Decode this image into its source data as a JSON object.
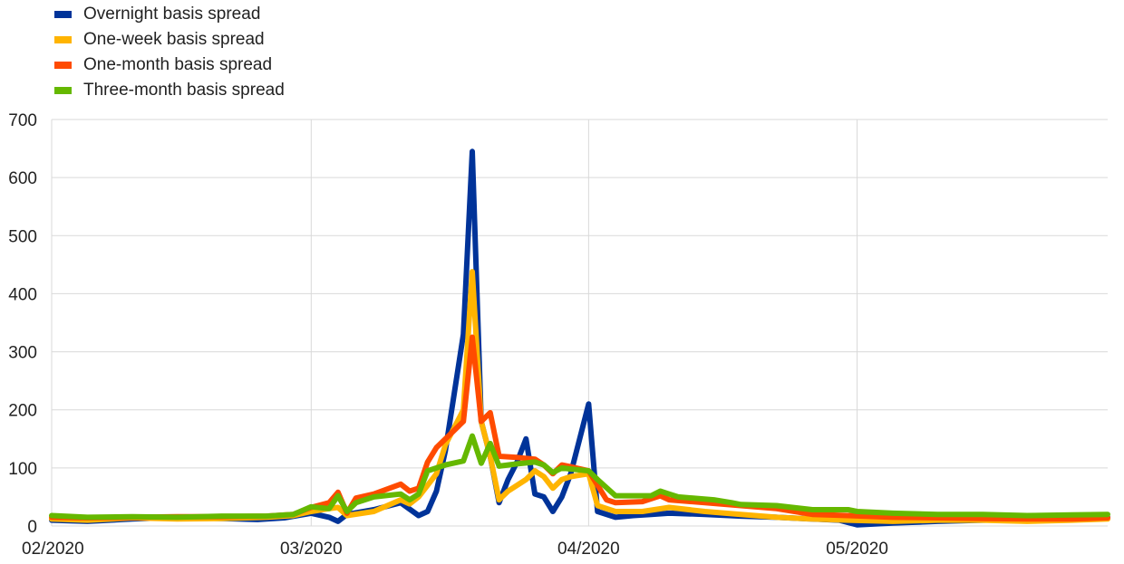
{
  "chart_data": {
    "type": "line",
    "title": "",
    "xlabel": "",
    "ylabel": "",
    "ylim": [
      0,
      700
    ],
    "yticks": [
      0,
      100,
      200,
      300,
      400,
      500,
      600,
      700
    ],
    "xlim": [
      "2020-02-01",
      "2020-05-29"
    ],
    "xticks": [
      {
        "date": "2020-02-01",
        "label": "02/2020"
      },
      {
        "date": "2020-03-01",
        "label": "03/2020"
      },
      {
        "date": "2020-04-01",
        "label": "04/2020"
      },
      {
        "date": "2020-05-01",
        "label": "05/2020"
      }
    ],
    "grid": true,
    "legend_position": "top-left",
    "series": [
      {
        "name": "Overnight basis spread",
        "color": "#003399",
        "points": [
          [
            "2020-02-01",
            10
          ],
          [
            "2020-02-05",
            8
          ],
          [
            "2020-02-10",
            12
          ],
          [
            "2020-02-15",
            15
          ],
          [
            "2020-02-20",
            13
          ],
          [
            "2020-02-24",
            11
          ],
          [
            "2020-02-27",
            14
          ],
          [
            "2020-03-01",
            22
          ],
          [
            "2020-03-03",
            15
          ],
          [
            "2020-03-04",
            8
          ],
          [
            "2020-03-05",
            20
          ],
          [
            "2020-03-08",
            28
          ],
          [
            "2020-03-11",
            40
          ],
          [
            "2020-03-13",
            18
          ],
          [
            "2020-03-14",
            25
          ],
          [
            "2020-03-15",
            60
          ],
          [
            "2020-03-16",
            130
          ],
          [
            "2020-03-17",
            230
          ],
          [
            "2020-03-18",
            330
          ],
          [
            "2020-03-19",
            645
          ],
          [
            "2020-03-20",
            180
          ],
          [
            "2020-03-21",
            120
          ],
          [
            "2020-03-22",
            40
          ],
          [
            "2020-03-23",
            80
          ],
          [
            "2020-03-24",
            110
          ],
          [
            "2020-03-25",
            150
          ],
          [
            "2020-03-26",
            55
          ],
          [
            "2020-03-27",
            50
          ],
          [
            "2020-03-28",
            25
          ],
          [
            "2020-03-29",
            50
          ],
          [
            "2020-03-30",
            90
          ],
          [
            "2020-04-01",
            210
          ],
          [
            "2020-04-02",
            25
          ],
          [
            "2020-04-04",
            15
          ],
          [
            "2020-04-06",
            18
          ],
          [
            "2020-04-08",
            20
          ],
          [
            "2020-04-10",
            22
          ],
          [
            "2020-04-14",
            20
          ],
          [
            "2020-04-18",
            17
          ],
          [
            "2020-04-22",
            15
          ],
          [
            "2020-04-26",
            12
          ],
          [
            "2020-04-29",
            10
          ],
          [
            "2020-05-01",
            2
          ],
          [
            "2020-05-05",
            5
          ],
          [
            "2020-05-10",
            8
          ],
          [
            "2020-05-15",
            10
          ],
          [
            "2020-05-20",
            12
          ],
          [
            "2020-05-25",
            13
          ],
          [
            "2020-05-29",
            15
          ]
        ]
      },
      {
        "name": "One-week basis spread",
        "color": "#FFB400",
        "points": [
          [
            "2020-02-01",
            12
          ],
          [
            "2020-02-05",
            10
          ],
          [
            "2020-02-10",
            14
          ],
          [
            "2020-02-15",
            12
          ],
          [
            "2020-02-20",
            13
          ],
          [
            "2020-02-25",
            15
          ],
          [
            "2020-02-28",
            18
          ],
          [
            "2020-03-01",
            25
          ],
          [
            "2020-03-03",
            30
          ],
          [
            "2020-03-04",
            32
          ],
          [
            "2020-03-05",
            18
          ],
          [
            "2020-03-08",
            25
          ],
          [
            "2020-03-11",
            45
          ],
          [
            "2020-03-12",
            38
          ],
          [
            "2020-03-13",
            50
          ],
          [
            "2020-03-15",
            90
          ],
          [
            "2020-03-16",
            140
          ],
          [
            "2020-03-17",
            170
          ],
          [
            "2020-03-18",
            200
          ],
          [
            "2020-03-19",
            438
          ],
          [
            "2020-03-20",
            180
          ],
          [
            "2020-03-21",
            120
          ],
          [
            "2020-03-22",
            45
          ],
          [
            "2020-03-23",
            60
          ],
          [
            "2020-03-25",
            80
          ],
          [
            "2020-03-26",
            95
          ],
          [
            "2020-03-27",
            85
          ],
          [
            "2020-03-28",
            65
          ],
          [
            "2020-03-29",
            80
          ],
          [
            "2020-03-30",
            85
          ],
          [
            "2020-04-01",
            90
          ],
          [
            "2020-04-02",
            35
          ],
          [
            "2020-04-04",
            25
          ],
          [
            "2020-04-07",
            25
          ],
          [
            "2020-04-10",
            32
          ],
          [
            "2020-04-14",
            25
          ],
          [
            "2020-04-18",
            20
          ],
          [
            "2020-04-22",
            15
          ],
          [
            "2020-04-26",
            12
          ],
          [
            "2020-04-30",
            10
          ],
          [
            "2020-05-05",
            8
          ],
          [
            "2020-05-10",
            10
          ],
          [
            "2020-05-15",
            10
          ],
          [
            "2020-05-20",
            8
          ],
          [
            "2020-05-25",
            10
          ],
          [
            "2020-05-29",
            12
          ]
        ]
      },
      {
        "name": "One-month basis spread",
        "color": "#FF4B00",
        "points": [
          [
            "2020-02-01",
            15
          ],
          [
            "2020-02-05",
            14
          ],
          [
            "2020-02-10",
            15
          ],
          [
            "2020-02-15",
            16
          ],
          [
            "2020-02-20",
            16
          ],
          [
            "2020-02-25",
            17
          ],
          [
            "2020-02-28",
            20
          ],
          [
            "2020-03-01",
            32
          ],
          [
            "2020-03-03",
            40
          ],
          [
            "2020-03-04",
            58
          ],
          [
            "2020-03-05",
            22
          ],
          [
            "2020-03-06",
            48
          ],
          [
            "2020-03-08",
            55
          ],
          [
            "2020-03-11",
            72
          ],
          [
            "2020-03-12",
            60
          ],
          [
            "2020-03-13",
            65
          ],
          [
            "2020-03-14",
            110
          ],
          [
            "2020-03-15",
            135
          ],
          [
            "2020-03-16",
            150
          ],
          [
            "2020-03-18",
            180
          ],
          [
            "2020-03-19",
            325
          ],
          [
            "2020-03-20",
            180
          ],
          [
            "2020-03-21",
            195
          ],
          [
            "2020-03-22",
            120
          ],
          [
            "2020-03-24",
            118
          ],
          [
            "2020-03-26",
            115
          ],
          [
            "2020-03-27",
            105
          ],
          [
            "2020-03-28",
            90
          ],
          [
            "2020-03-29",
            105
          ],
          [
            "2020-03-30",
            102
          ],
          [
            "2020-04-01",
            95
          ],
          [
            "2020-04-03",
            45
          ],
          [
            "2020-04-04",
            40
          ],
          [
            "2020-04-07",
            42
          ],
          [
            "2020-04-09",
            52
          ],
          [
            "2020-04-10",
            45
          ],
          [
            "2020-04-14",
            40
          ],
          [
            "2020-04-18",
            35
          ],
          [
            "2020-04-22",
            30
          ],
          [
            "2020-04-26",
            20
          ],
          [
            "2020-04-30",
            18
          ],
          [
            "2020-05-05",
            15
          ],
          [
            "2020-05-10",
            14
          ],
          [
            "2020-05-15",
            13
          ],
          [
            "2020-05-20",
            12
          ],
          [
            "2020-05-25",
            12
          ],
          [
            "2020-05-29",
            14
          ]
        ]
      },
      {
        "name": "Three-month basis spread",
        "color": "#65B800",
        "points": [
          [
            "2020-02-01",
            18
          ],
          [
            "2020-02-05",
            15
          ],
          [
            "2020-02-10",
            16
          ],
          [
            "2020-02-15",
            15
          ],
          [
            "2020-02-20",
            17
          ],
          [
            "2020-02-25",
            17
          ],
          [
            "2020-02-28",
            20
          ],
          [
            "2020-03-01",
            33
          ],
          [
            "2020-03-03",
            30
          ],
          [
            "2020-03-04",
            52
          ],
          [
            "2020-03-05",
            25
          ],
          [
            "2020-03-06",
            40
          ],
          [
            "2020-03-08",
            50
          ],
          [
            "2020-03-11",
            55
          ],
          [
            "2020-03-12",
            45
          ],
          [
            "2020-03-13",
            55
          ],
          [
            "2020-03-14",
            95
          ],
          [
            "2020-03-16",
            105
          ],
          [
            "2020-03-18",
            112
          ],
          [
            "2020-03-19",
            155
          ],
          [
            "2020-03-20",
            108
          ],
          [
            "2020-03-21",
            142
          ],
          [
            "2020-03-22",
            103
          ],
          [
            "2020-03-24",
            107
          ],
          [
            "2020-03-26",
            110
          ],
          [
            "2020-03-27",
            105
          ],
          [
            "2020-03-28",
            92
          ],
          [
            "2020-03-29",
            100
          ],
          [
            "2020-03-30",
            98
          ],
          [
            "2020-04-01",
            95
          ],
          [
            "2020-04-02",
            80
          ],
          [
            "2020-04-04",
            52
          ],
          [
            "2020-04-08",
            52
          ],
          [
            "2020-04-09",
            60
          ],
          [
            "2020-04-10",
            55
          ],
          [
            "2020-04-11",
            50
          ],
          [
            "2020-04-15",
            45
          ],
          [
            "2020-04-17",
            40
          ],
          [
            "2020-04-18",
            37
          ],
          [
            "2020-04-22",
            35
          ],
          [
            "2020-04-26",
            28
          ],
          [
            "2020-04-30",
            28
          ],
          [
            "2020-05-01",
            25
          ],
          [
            "2020-05-05",
            22
          ],
          [
            "2020-05-10",
            20
          ],
          [
            "2020-05-15",
            20
          ],
          [
            "2020-05-20",
            18
          ],
          [
            "2020-05-25",
            19
          ],
          [
            "2020-05-29",
            20
          ]
        ]
      }
    ]
  }
}
